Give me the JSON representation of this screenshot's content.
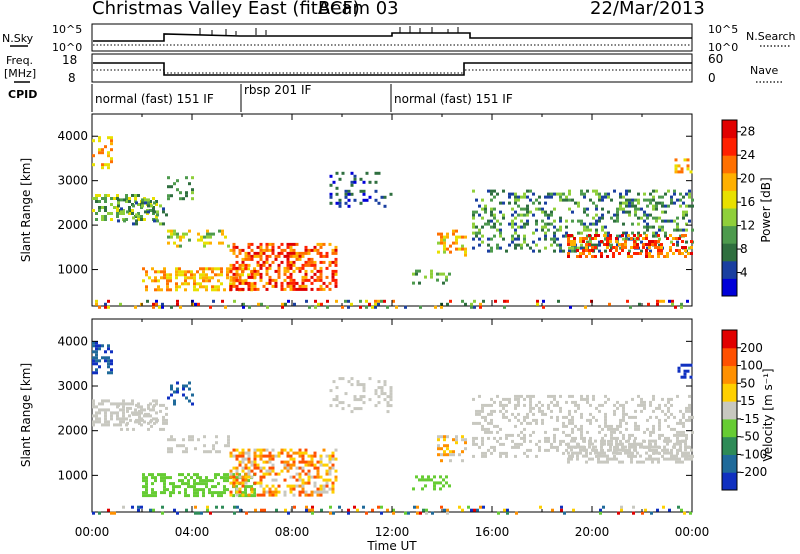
{
  "header": {
    "station": "Christmas Valley East (fitACF)",
    "beam": "Beam 03",
    "date": "22/Mar/2013"
  },
  "top_panels": {
    "nsky_label": "N.Sky",
    "nsky_ticks": [
      "10^5",
      "10^0"
    ],
    "nsearch_label": "N.Search",
    "nsearch_ticks": [
      "10^5",
      "10^0"
    ],
    "freq_label_1": "Freq.",
    "freq_label_2": "[MHz]",
    "freq_ticks": [
      "18",
      "8"
    ],
    "nave_label": "Nave",
    "nave_ticks": [
      "60",
      "0"
    ],
    "cpid_label": "CPID",
    "cpid_segments": [
      {
        "label": "normal (fast) 151 IF",
        "start": 0,
        "end": 6
      },
      {
        "label": "rbsp 201 IF",
        "start": 6,
        "end": 12
      },
      {
        "label": "normal (fast) 151 IF",
        "start": 12,
        "end": 24
      }
    ]
  },
  "chart_data": [
    {
      "type": "heatmap",
      "name": "power",
      "ylabel": "Slant Range [km]",
      "xlabel": "Time UT",
      "x_ticks": [
        "00:00",
        "04:00",
        "08:00",
        "12:00",
        "16:00",
        "20:00",
        "00:00"
      ],
      "xlim_hours": [
        0,
        24
      ],
      "y_ticks": [
        "1000",
        "2000",
        "3000",
        "4000"
      ],
      "ylim_km": [
        180,
        4500
      ],
      "colorbar_label": "Power [dB]",
      "colorbar_ticks": [
        "4",
        "8",
        "12",
        "16",
        "20",
        "24",
        "28"
      ],
      "colorbar_range": [
        0,
        30
      ],
      "colorbar_colors": [
        "#0000d8",
        "#1a3fa0",
        "#2f6f3f",
        "#4d9a4d",
        "#8fcf3a",
        "#e8e000",
        "#ffb000",
        "#ff7000",
        "#ff2000",
        "#e00000"
      ]
    },
    {
      "type": "heatmap",
      "name": "velocity",
      "ylabel": "Slant Range [km]",
      "xlabel": "Time UT",
      "x_ticks": [
        "00:00",
        "04:00",
        "08:00",
        "12:00",
        "16:00",
        "20:00",
        "00:00"
      ],
      "xlim_hours": [
        0,
        24
      ],
      "y_ticks": [
        "1000",
        "2000",
        "3000",
        "4000"
      ],
      "ylim_km": [
        180,
        4500
      ],
      "colorbar_label": "Velocity [m s⁻¹]",
      "colorbar_ticks": [
        "200",
        "100",
        "50",
        "15",
        "-15",
        "-50",
        "-100",
        "-200"
      ],
      "colorbar_colors": [
        "#1030c0",
        "#1f6a9a",
        "#2e8b57",
        "#66cc33",
        "#c8c8c0",
        "#ffd000",
        "#ff9000",
        "#ff5000",
        "#e00000"
      ]
    }
  ],
  "footer": {
    "x_axis_title": "Time UT"
  }
}
